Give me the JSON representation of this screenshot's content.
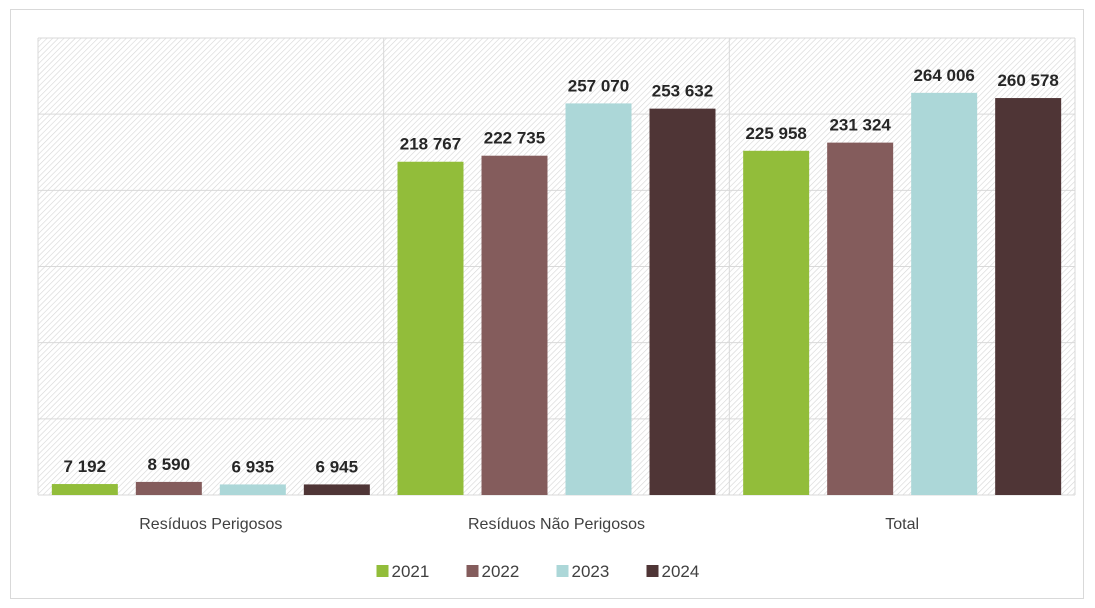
{
  "chart_data": {
    "type": "bar",
    "categories": [
      "Resíduos Perigosos",
      "Resíduos Não Perigosos",
      "Total"
    ],
    "series": [
      {
        "name": "2021",
        "color": "#92bd3a",
        "values": [
          7192,
          218767,
          225958
        ],
        "labels": [
          "7 192",
          "218 767",
          "225 958"
        ]
      },
      {
        "name": "2022",
        "color": "#845c5c",
        "values": [
          8590,
          222735,
          231324
        ],
        "labels": [
          "8 590",
          "222 735",
          "231 324"
        ]
      },
      {
        "name": "2023",
        "color": "#acd7d8",
        "values": [
          6935,
          257070,
          264006
        ],
        "labels": [
          "6 935",
          "257 070",
          "264 006"
        ]
      },
      {
        "name": "2024",
        "color": "#4f3536",
        "values": [
          6945,
          253632,
          260578
        ],
        "labels": [
          "6 945",
          "253 632",
          "260 578"
        ]
      }
    ],
    "title": "",
    "xlabel": "",
    "ylabel": "",
    "ylim": [
      0,
      300000
    ],
    "grid": true,
    "legend": "bottom"
  }
}
